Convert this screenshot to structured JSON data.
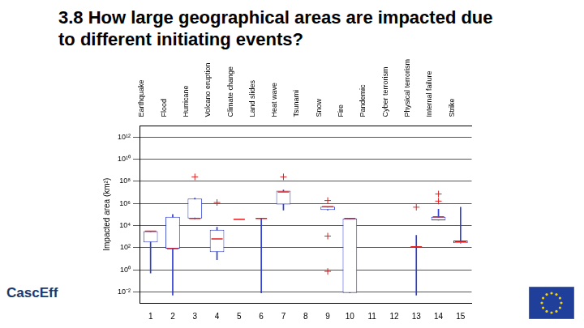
{
  "title": "3.8 How large geographical areas are impacted due to different initiating events?",
  "logo_text": "CascEff",
  "chart_data": {
    "type": "boxplot",
    "y_label": "Impacted area (km²)",
    "categories": [
      "1",
      "2",
      "3",
      "4",
      "5",
      "6",
      "7",
      "8",
      "9",
      "10",
      "11",
      "12",
      "13",
      "14",
      "15"
    ],
    "top_labels": [
      "Earthquake",
      "Flood",
      "Hurricane",
      "Volcano eruption",
      "Climate change",
      "Land slides",
      "Heat wave",
      "Tsunami",
      "Snow",
      "Fire",
      "Pandemic",
      "Cyber terrorism",
      "Physical terrorism",
      "Internal failure",
      "Strike"
    ],
    "min": [
      0.5,
      0.005,
      40000,
      8,
      37000,
      0.008,
      250000,
      null,
      250000,
      0.008,
      null,
      null,
      0.005,
      30000,
      250
    ],
    "q1": [
      300,
      80,
      43000,
      40,
      37000,
      43000,
      800000,
      null,
      250000,
      0.008,
      null,
      null,
      120,
      30000,
      250
    ],
    "median": [
      3000,
      80,
      43000,
      600,
      37000,
      43000,
      11000000,
      null,
      500000,
      43000,
      null,
      null,
      120,
      60000,
      350
    ],
    "q3": [
      3000,
      60000,
      2700000,
      4000,
      37000,
      43000,
      14000000,
      null,
      500000,
      43000,
      null,
      null,
      120,
      60000,
      440
    ],
    "max": [
      3000,
      100000,
      3000000,
      7000,
      37000,
      43000,
      16000000,
      null,
      500000,
      43000,
      null,
      null,
      1300,
      300000,
      450000
    ],
    "outliers": [
      [],
      [],
      [
        250000000
      ],
      [
        1200000
      ],
      [],
      [],
      [
        250000000
      ],
      [],
      [
        1800000,
        1100,
        0.7
      ],
      [],
      [],
      [],
      [
        450000
      ],
      [
        1600000,
        7000000
      ],
      []
    ],
    "color": "#2f3fd0",
    "log": "y",
    "grid": true,
    "ylim": [
      0.001,
      10000000000000
    ],
    "yticks": [
      {
        "value": 0.01,
        "label": "10⁻²"
      },
      {
        "value": 1,
        "label": "10⁰"
      },
      {
        "value": 100,
        "label": "10²"
      },
      {
        "value": 10000,
        "label": "10⁴"
      },
      {
        "value": 1000000,
        "label": "10⁶"
      },
      {
        "value": 100000000,
        "label": "10⁸"
      },
      {
        "value": 10000000000,
        "label": "10¹⁰"
      },
      {
        "value": 1000000000000,
        "label": "10¹²"
      }
    ]
  }
}
